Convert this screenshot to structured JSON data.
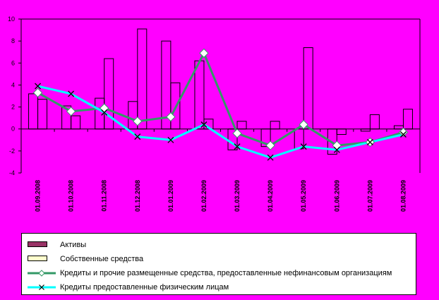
{
  "chart_data": {
    "type": "bar",
    "categories": [
      "01.09.2008",
      "01.10.2008",
      "01.11.2008",
      "01.12.2008",
      "01.01.2009",
      "01.02.2009",
      "01.03.2009",
      "01.04.2009",
      "01.05.2009",
      "01.06.2009",
      "01.07.2009",
      "01.08.2009"
    ],
    "ylim": [
      -4,
      10
    ],
    "yticks": [
      -4,
      -2,
      0,
      2,
      4,
      6,
      8,
      10
    ],
    "series": [
      {
        "name": "Активы",
        "kind": "bar",
        "color": "#993366",
        "values": [
          3.2,
          2.1,
          2.8,
          2.5,
          8.0,
          6.2,
          -1.9,
          -1.6,
          -1.8,
          -2.3,
          -0.2,
          0.3
        ]
      },
      {
        "name": "Собственные средства",
        "kind": "bar",
        "color": "#FFFFCC",
        "values": [
          2.7,
          1.2,
          6.4,
          9.1,
          4.2,
          0.9,
          0.7,
          0.7,
          7.4,
          -0.5,
          1.3,
          1.8
        ]
      },
      {
        "name": "Кредиты и прочие размещенные средства, предоставленные нефинансовым организациям",
        "kind": "line",
        "color": "#339966",
        "marker": "diamond",
        "values": [
          3.3,
          1.6,
          1.9,
          0.7,
          1.1,
          6.9,
          -0.4,
          -1.5,
          0.4,
          -1.5,
          -1.2,
          -0.3
        ]
      },
      {
        "name": "Кредиты предоставленные физическим лицам",
        "kind": "line",
        "color": "#00FFFF",
        "marker": "x",
        "values": [
          3.9,
          3.2,
          1.5,
          -0.7,
          -1.0,
          0.4,
          -1.6,
          -2.6,
          -1.6,
          -1.9,
          -1.2,
          -0.5
        ]
      }
    ]
  },
  "colors": {
    "background": "#FF00FF",
    "plot_area": "#FF00FF",
    "legend_bg": "#FFFFFF"
  }
}
